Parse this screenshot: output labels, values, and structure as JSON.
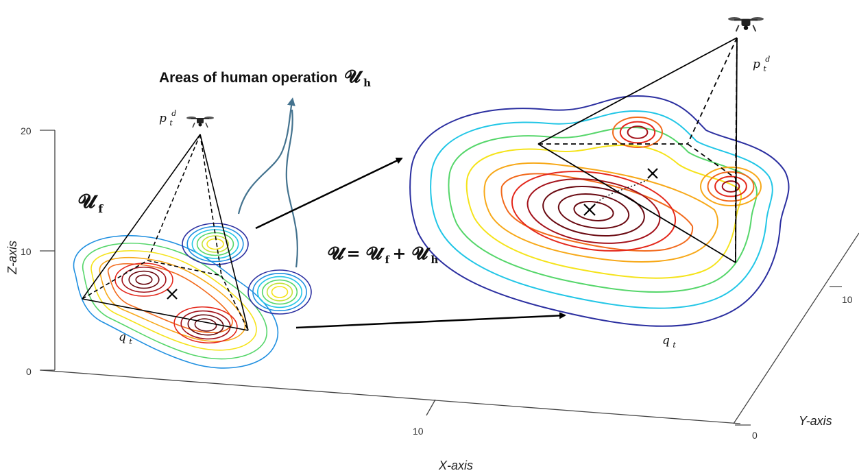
{
  "axes": {
    "z_label": "Z-axis",
    "x_label": "X-axis",
    "y_label": "Y-axis",
    "z_ticks": [
      "20",
      "10",
      "0"
    ],
    "x_ticks": [
      "10"
    ],
    "y_ticks": [
      "10",
      "0"
    ]
  },
  "labels": {
    "human_areas_text": "Areas of human operation",
    "human_areas_symbol": "𝓤",
    "human_areas_sub": "h",
    "uf_symbol": "𝓤",
    "uf_sub": "f",
    "equation_lhs": "𝓤",
    "equation_eq": " = ",
    "equation_t1": "𝓤",
    "equation_t1_sub": "f",
    "equation_plus": " + ",
    "equation_t2": "𝓤",
    "equation_t2_sub": "h",
    "drone_pos_left_base": "p",
    "drone_pos_left_sub": "t",
    "drone_pos_left_sup": "d",
    "drone_pos_right_base": "p",
    "drone_pos_right_sub": "t",
    "drone_pos_right_sup": "d",
    "q_left_base": "q",
    "q_left_sub": "t",
    "q_right_base": "q",
    "q_right_sub": "t"
  },
  "contour_colors": [
    "#2b2fa0",
    "#1f8fe0",
    "#22c6e6",
    "#55d66a",
    "#c4e23a",
    "#f5e31a",
    "#f7a818",
    "#f26a1c",
    "#e4281c",
    "#a3111a",
    "#6a0a12"
  ],
  "arrow_color": "#44738f"
}
